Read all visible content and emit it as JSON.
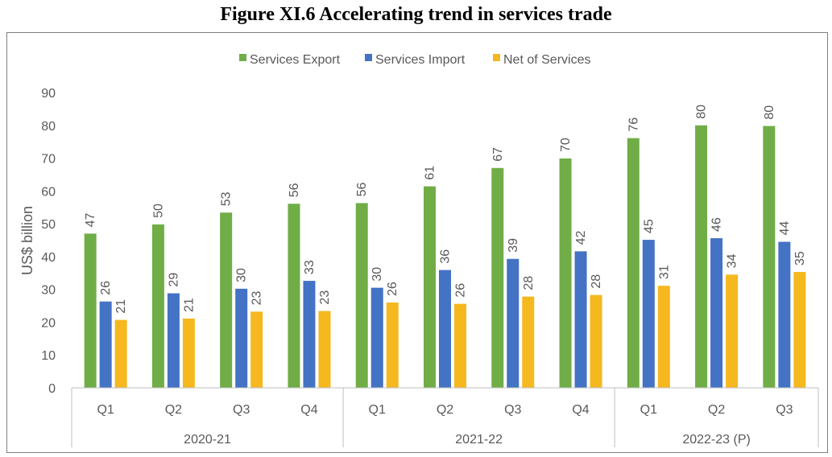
{
  "figure_title": "Figure XI.6 Accelerating trend in services trade",
  "chart_data": {
    "type": "bar",
    "title": "",
    "xlabel": "",
    "ylabel": "US$ billion",
    "ylim": [
      0,
      90
    ],
    "yticks": [
      0,
      10,
      20,
      30,
      40,
      50,
      60,
      70,
      80,
      90
    ],
    "grid": false,
    "legend_position": "top",
    "categories": [
      "Q1",
      "Q2",
      "Q3",
      "Q4",
      "Q1",
      "Q2",
      "Q3",
      "Q4",
      "Q1",
      "Q2",
      "Q3"
    ],
    "groups": [
      {
        "label": "2020-21",
        "count": 4
      },
      {
        "label": "2021-22",
        "count": 4
      },
      {
        "label": "2022-23 (P)",
        "count": 3
      }
    ],
    "series": [
      {
        "name": "Services Export",
        "color": "#70AD47",
        "values": [
          47,
          50,
          53,
          56,
          56,
          61,
          67,
          70,
          76,
          80,
          80
        ],
        "plot_values": [
          47.0,
          49.8,
          53.4,
          56.1,
          56.3,
          61.4,
          67.0,
          69.9,
          76.1,
          80.0,
          79.8
        ]
      },
      {
        "name": "Services Import",
        "color": "#4472C4",
        "values": [
          26,
          29,
          30,
          33,
          30,
          36,
          39,
          42,
          45,
          46,
          44
        ],
        "plot_values": [
          26.3,
          28.8,
          30.2,
          32.6,
          30.5,
          35.9,
          39.3,
          41.6,
          45.1,
          45.6,
          44.5
        ]
      },
      {
        "name": "Net of Services",
        "color": "#F5B81F",
        "values": [
          21,
          21,
          23,
          23,
          26,
          26,
          28,
          28,
          31,
          34,
          35
        ],
        "plot_values": [
          20.7,
          21.1,
          23.2,
          23.4,
          26.0,
          25.6,
          27.8,
          28.3,
          31.1,
          34.5,
          35.3
        ]
      }
    ]
  }
}
